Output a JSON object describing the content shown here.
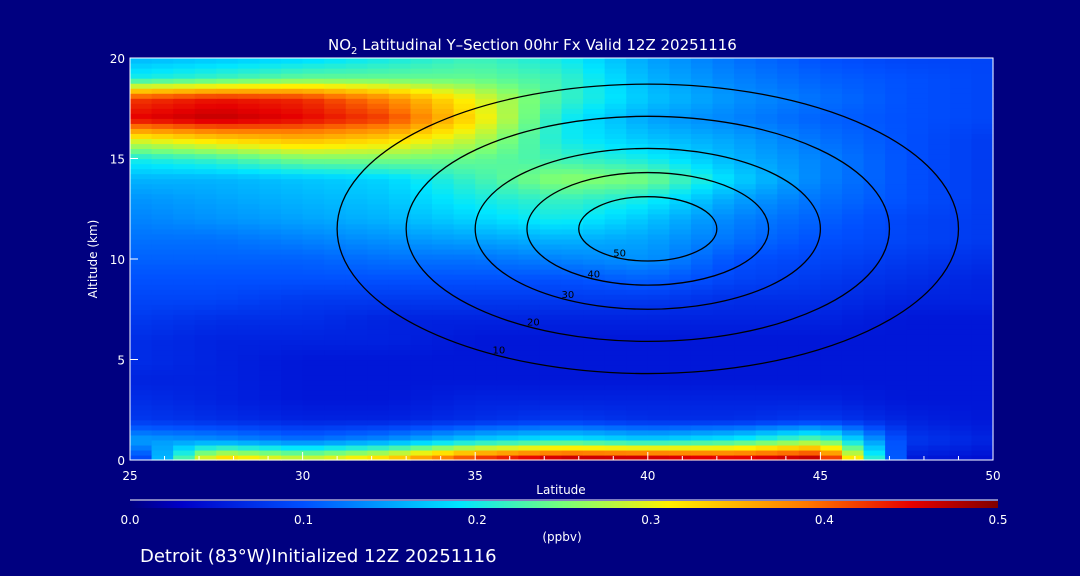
{
  "chart_data": {
    "type": "heatmap",
    "title_main": "NO",
    "title_sub": "2",
    "title_rest": " Latitudinal Y–Section 00hr  Fx Valid 12Z 20251116",
    "xlabel": "Latitude",
    "ylabel": "Altitude (km)",
    "xlim": [
      25,
      50
    ],
    "ylim": [
      0,
      20
    ],
    "xticks": [
      "25",
      "30",
      "35",
      "40",
      "45",
      "50"
    ],
    "yticks": [
      "0",
      "5",
      "10",
      "15",
      "20"
    ],
    "colorbar": {
      "ticks": [
        "0.0",
        "0.1",
        "0.2",
        "0.3",
        "0.4",
        "0.5"
      ],
      "range": [
        0,
        0.5
      ],
      "units": "(ppbv)"
    },
    "footer": "Detroit (83°W)Initialized 12Z 20251116",
    "grid_lat": [
      25,
      27.5,
      30,
      32.5,
      35,
      37.5,
      40,
      42.5,
      45,
      47.5,
      50
    ],
    "grid_alt": [
      0,
      1,
      2,
      3,
      4,
      5,
      6,
      7,
      8,
      9,
      10,
      11,
      12,
      13,
      14,
      15,
      16,
      17,
      18,
      19,
      20
    ],
    "values": [
      [
        0.05,
        0.35,
        0.3,
        0.35,
        0.45,
        0.5,
        0.5,
        0.48,
        0.5,
        0.05,
        0.04
      ],
      [
        0.15,
        0.14,
        0.12,
        0.14,
        0.18,
        0.2,
        0.18,
        0.2,
        0.25,
        0.08,
        0.06
      ],
      [
        0.08,
        0.07,
        0.06,
        0.06,
        0.07,
        0.08,
        0.07,
        0.07,
        0.08,
        0.06,
        0.05
      ],
      [
        0.07,
        0.06,
        0.05,
        0.05,
        0.06,
        0.06,
        0.06,
        0.06,
        0.06,
        0.05,
        0.05
      ],
      [
        0.06,
        0.06,
        0.05,
        0.05,
        0.05,
        0.05,
        0.05,
        0.05,
        0.05,
        0.05,
        0.05
      ],
      [
        0.07,
        0.06,
        0.05,
        0.05,
        0.05,
        0.05,
        0.05,
        0.05,
        0.05,
        0.05,
        0.05
      ],
      [
        0.07,
        0.06,
        0.06,
        0.06,
        0.05,
        0.05,
        0.05,
        0.05,
        0.05,
        0.05,
        0.05
      ],
      [
        0.08,
        0.07,
        0.07,
        0.06,
        0.06,
        0.06,
        0.06,
        0.06,
        0.06,
        0.05,
        0.05
      ],
      [
        0.09,
        0.09,
        0.08,
        0.08,
        0.08,
        0.08,
        0.08,
        0.07,
        0.07,
        0.06,
        0.06
      ],
      [
        0.1,
        0.1,
        0.1,
        0.1,
        0.1,
        0.1,
        0.11,
        0.09,
        0.08,
        0.07,
        0.06
      ],
      [
        0.11,
        0.11,
        0.11,
        0.12,
        0.12,
        0.13,
        0.14,
        0.1,
        0.09,
        0.08,
        0.07
      ],
      [
        0.12,
        0.12,
        0.13,
        0.14,
        0.15,
        0.16,
        0.15,
        0.12,
        0.1,
        0.09,
        0.08
      ],
      [
        0.13,
        0.14,
        0.15,
        0.16,
        0.18,
        0.2,
        0.17,
        0.13,
        0.11,
        0.09,
        0.08
      ],
      [
        0.14,
        0.15,
        0.16,
        0.17,
        0.2,
        0.22,
        0.2,
        0.15,
        0.12,
        0.1,
        0.08
      ],
      [
        0.16,
        0.16,
        0.17,
        0.18,
        0.22,
        0.26,
        0.25,
        0.18,
        0.13,
        0.1,
        0.08
      ],
      [
        0.2,
        0.22,
        0.25,
        0.25,
        0.24,
        0.22,
        0.2,
        0.16,
        0.13,
        0.1,
        0.08
      ],
      [
        0.3,
        0.33,
        0.35,
        0.33,
        0.28,
        0.2,
        0.17,
        0.15,
        0.12,
        0.1,
        0.08
      ],
      [
        0.45,
        0.47,
        0.45,
        0.42,
        0.32,
        0.2,
        0.15,
        0.13,
        0.11,
        0.1,
        0.09
      ],
      [
        0.42,
        0.44,
        0.43,
        0.38,
        0.3,
        0.22,
        0.17,
        0.14,
        0.12,
        0.1,
        0.09
      ],
      [
        0.2,
        0.22,
        0.24,
        0.24,
        0.24,
        0.22,
        0.16,
        0.13,
        0.11,
        0.1,
        0.09
      ],
      [
        0.16,
        0.17,
        0.18,
        0.2,
        0.22,
        0.2,
        0.15,
        0.12,
        0.1,
        0.09,
        0.09
      ]
    ],
    "contours": [
      {
        "label": "10",
        "center": [
          40,
          11.5
        ],
        "rx": 9,
        "ry": 9
      },
      {
        "label": "20",
        "center": [
          40,
          11.5
        ],
        "rx": 7,
        "ry": 7
      },
      {
        "label": "30",
        "center": [
          40,
          11.5
        ],
        "rx": 5,
        "ry": 5
      },
      {
        "label": "40",
        "center": [
          40,
          11.5
        ],
        "rx": 3.5,
        "ry": 3.5
      },
      {
        "label": "50",
        "center": [
          40,
          11.5
        ],
        "rx": 2,
        "ry": 2
      }
    ]
  }
}
